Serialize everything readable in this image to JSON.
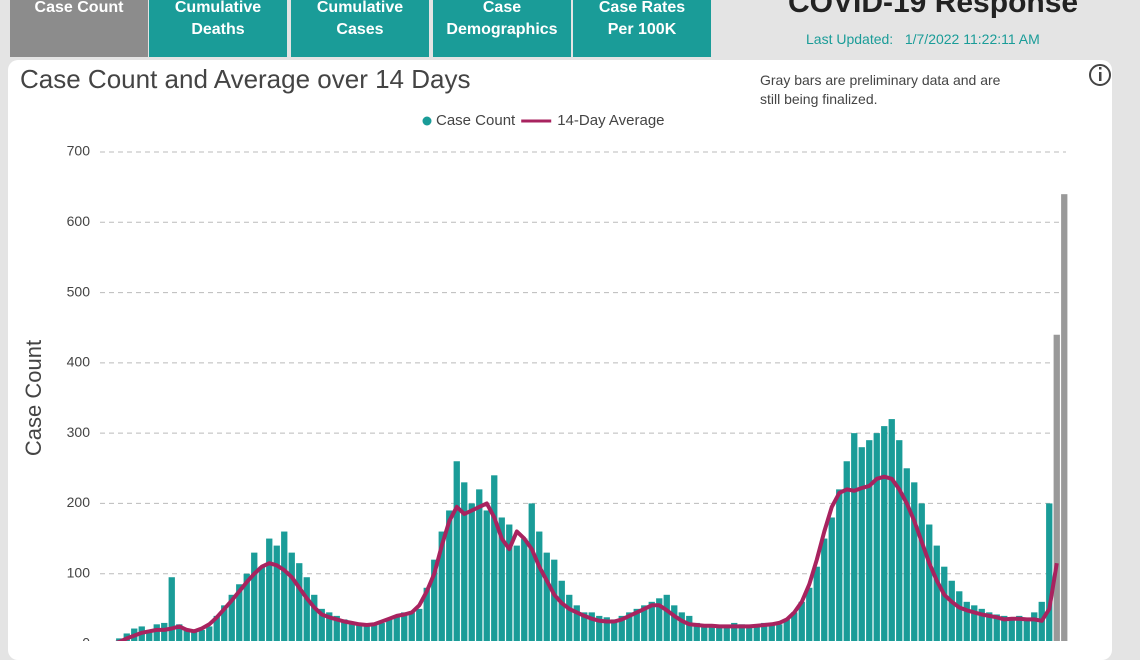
{
  "header": {
    "title": "COVID-19 Response",
    "updated_label": "Last Updated:",
    "updated_value": "1/7/2022 11:22:11 AM"
  },
  "tabs": [
    "Case Count",
    "Cumulative\nDeaths",
    "Cumulative\nCases",
    "Case\nDemographics",
    "Case Rates\nPer 100K"
  ],
  "chart_data": {
    "type": "bar",
    "title": "Case Count and Average over 14 Days",
    "note": "Gray bars are preliminary data and are\nstill being finalized.",
    "y_label": "Case Count",
    "ylim": [
      0,
      700
    ],
    "yticks": [
      0,
      100,
      200,
      300,
      400,
      500,
      600,
      700
    ],
    "grid": true,
    "preliminary_color": "#999999",
    "preliminary_last": 2,
    "series": [
      {
        "name": "Case Count",
        "type": "bar",
        "color": "#1a9c98",
        "values": [
          3,
          8,
          15,
          22,
          25,
          20,
          28,
          30,
          95,
          28,
          22,
          18,
          20,
          25,
          40,
          55,
          70,
          85,
          100,
          130,
          110,
          150,
          140,
          160,
          130,
          115,
          95,
          70,
          50,
          45,
          40,
          35,
          32,
          28,
          25,
          28,
          30,
          35,
          40,
          45,
          45,
          50,
          80,
          120,
          160,
          190,
          260,
          230,
          200,
          220,
          190,
          240,
          180,
          170,
          140,
          150,
          200,
          160,
          130,
          120,
          90,
          70,
          55,
          45,
          45,
          40,
          38,
          35,
          40,
          45,
          50,
          55,
          60,
          65,
          70,
          55,
          45,
          40,
          30,
          28,
          28,
          26,
          25,
          30,
          28,
          27,
          26,
          30,
          30,
          28,
          35,
          45,
          60,
          80,
          110,
          150,
          180,
          220,
          260,
          300,
          280,
          290,
          300,
          310,
          320,
          290,
          250,
          230,
          200,
          170,
          140,
          110,
          90,
          75,
          60,
          55,
          50,
          45,
          42,
          40,
          38,
          40,
          35,
          45,
          60,
          200,
          440,
          640
        ]
      },
      {
        "name": "14-Day Average",
        "type": "line",
        "color": "#a8235f",
        "values": [
          0,
          3,
          8,
          12,
          16,
          18,
          20,
          20,
          22,
          25,
          20,
          18,
          22,
          28,
          38,
          50,
          62,
          75,
          88,
          100,
          110,
          115,
          112,
          105,
          95,
          80,
          65,
          52,
          42,
          38,
          35,
          32,
          30,
          28,
          27,
          28,
          32,
          36,
          40,
          42,
          45,
          55,
          75,
          100,
          140,
          175,
          195,
          185,
          190,
          195,
          200,
          180,
          150,
          135,
          160,
          150,
          135,
          110,
          90,
          70,
          58,
          50,
          45,
          40,
          36,
          33,
          32,
          32,
          35,
          40,
          45,
          50,
          55,
          55,
          48,
          40,
          33,
          28,
          27,
          26,
          26,
          25,
          25,
          25,
          25,
          25,
          26,
          27,
          28,
          30,
          35,
          45,
          60,
          85,
          120,
          160,
          195,
          215,
          220,
          218,
          222,
          225,
          235,
          238,
          235,
          220,
          200,
          175,
          145,
          115,
          90,
          70,
          60,
          52,
          48,
          45,
          42,
          40,
          38,
          35,
          36,
          36,
          35,
          35,
          33,
          50,
          115,
          null
        ]
      }
    ]
  }
}
